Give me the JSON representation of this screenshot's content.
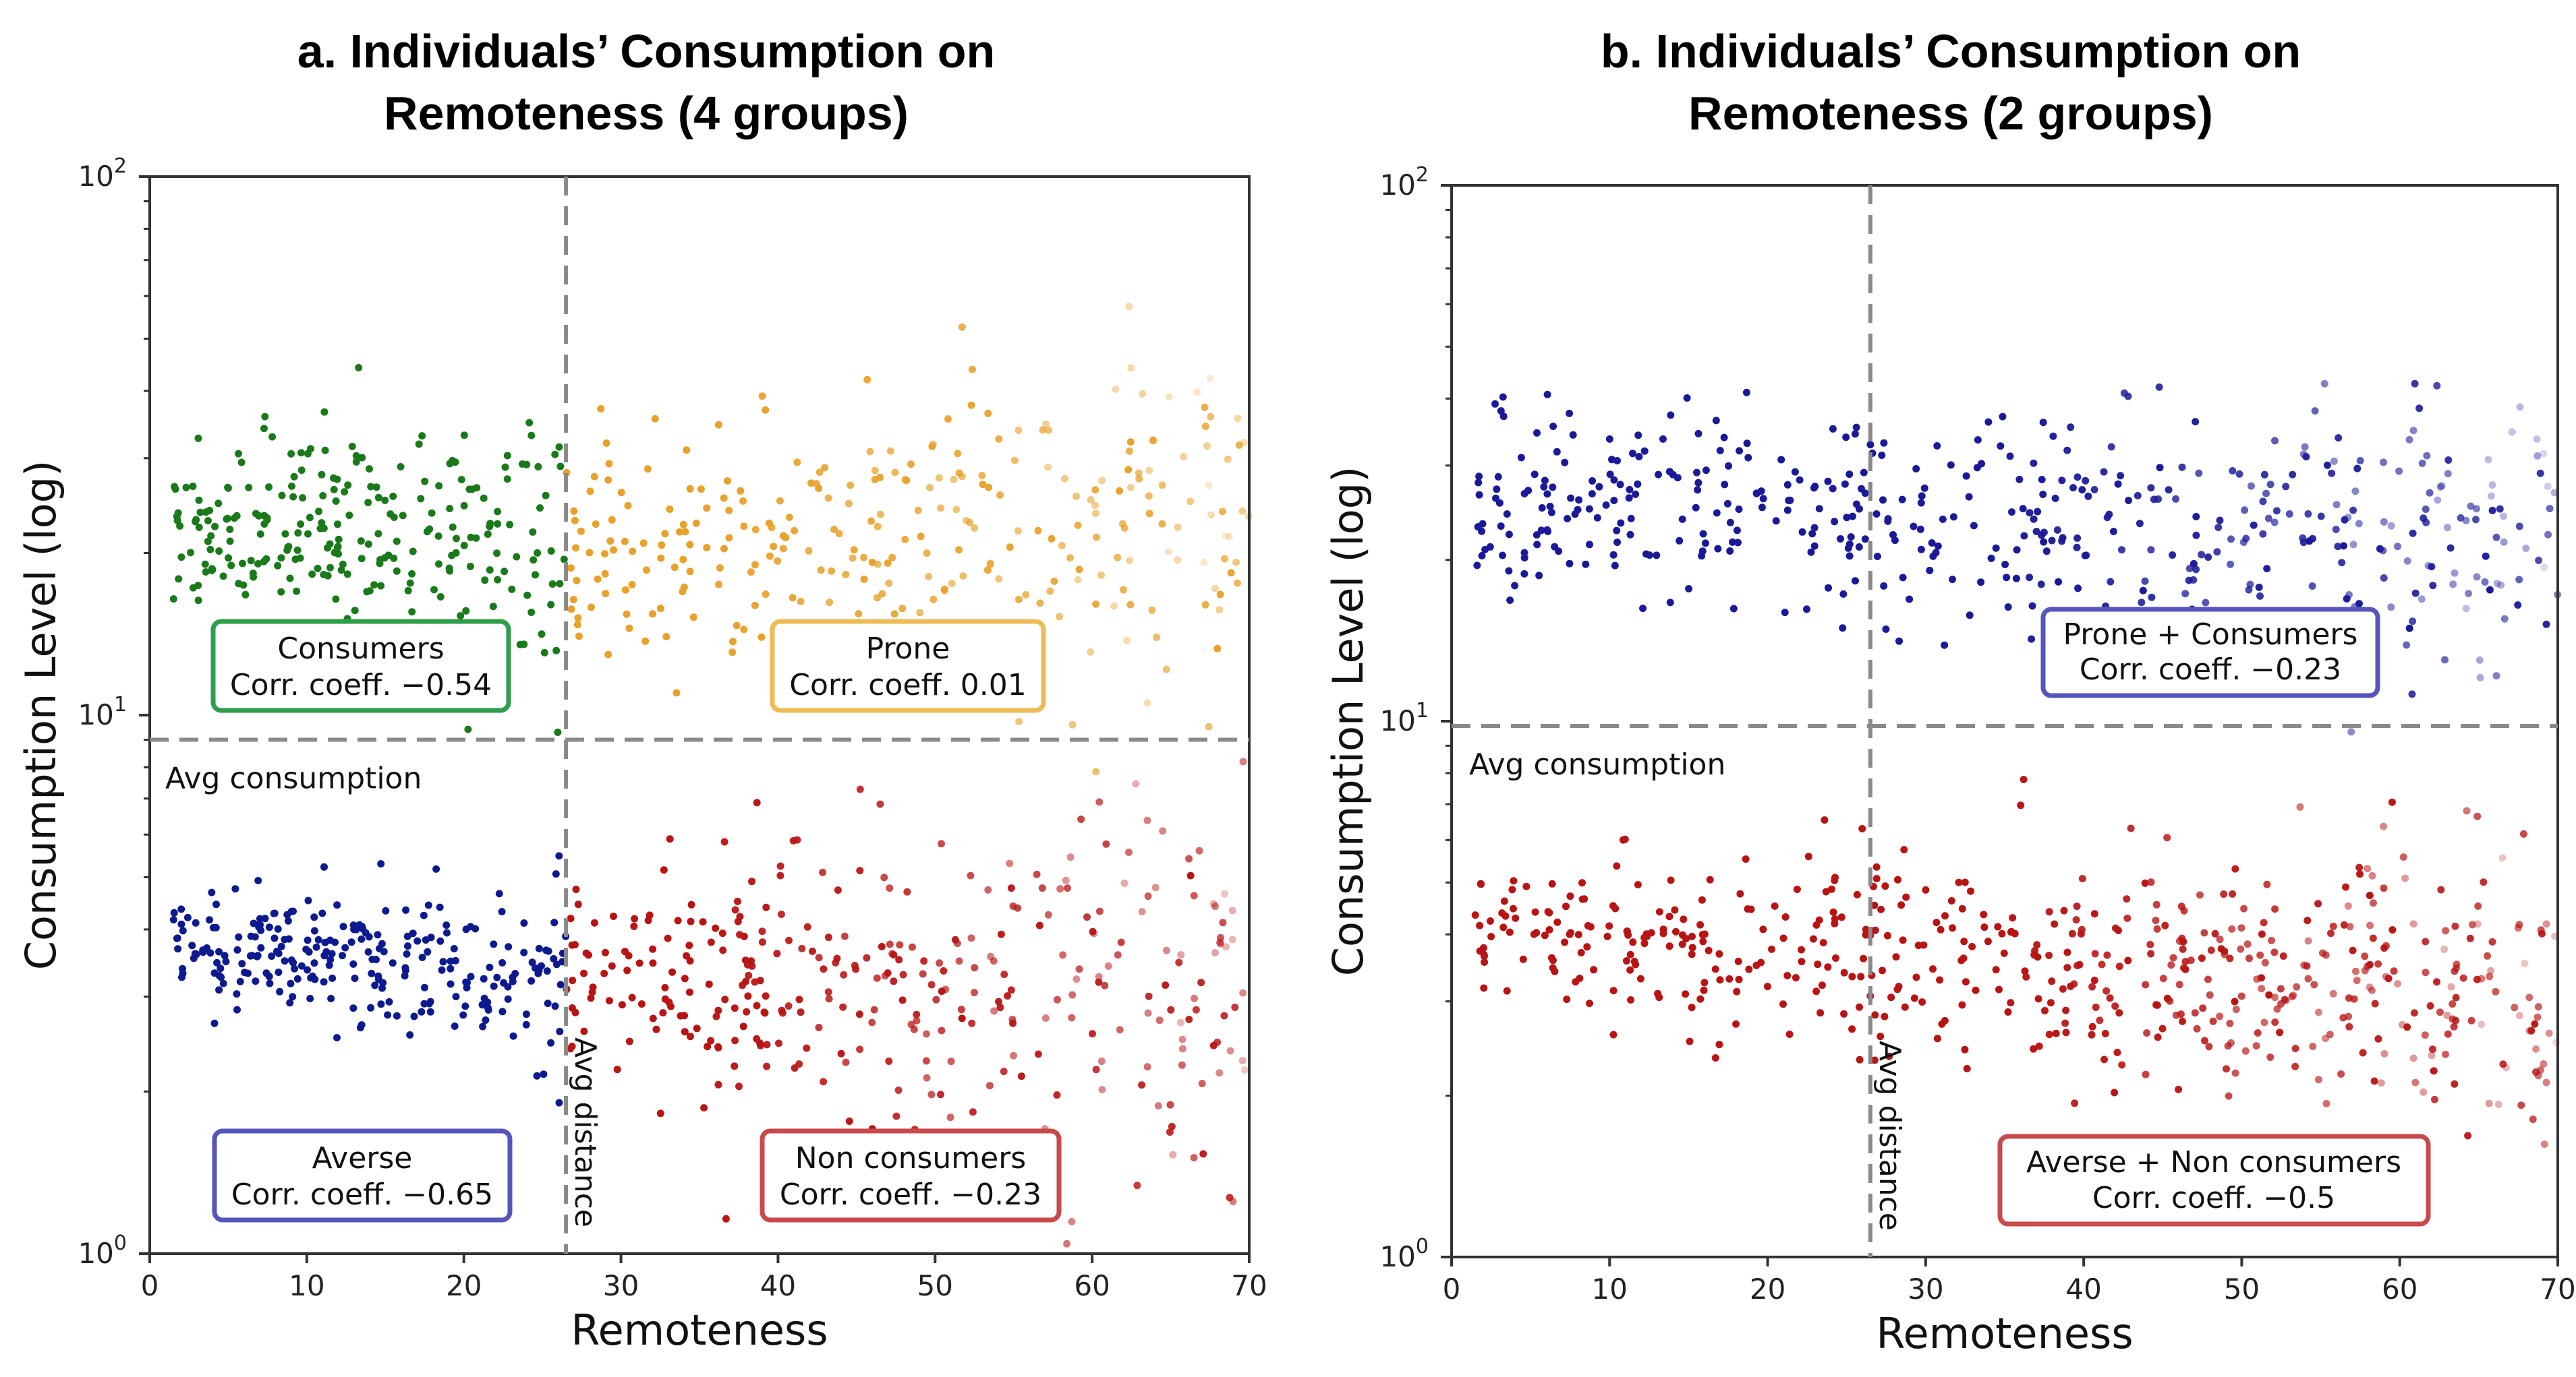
{
  "chart_data": [
    {
      "type": "scatter",
      "panel": "a",
      "title_lines": [
        "a. Individuals’ Consumption on",
        "Remoteness (4 groups)"
      ],
      "xlabel": "Remoteness",
      "ylabel": "Consumption Level (log)",
      "xlim": [
        0,
        70
      ],
      "ylim": [
        1,
        100
      ],
      "yscale": "log",
      "xticks": [
        "0",
        "10",
        "20",
        "30",
        "40",
        "50",
        "60",
        "70"
      ],
      "yticks": [
        {
          "base": "10",
          "exp": "0"
        },
        {
          "base": "10",
          "exp": "1"
        },
        {
          "base": "10",
          "exp": "2"
        }
      ],
      "avg_consumption": 9.0,
      "avg_distance": 26.5,
      "avg_consumption_label": "Avg consumption",
      "avg_distance_label": "Avg distance",
      "series": [
        {
          "name": "Consumers",
          "color": "#1a7a1a",
          "x_range": [
            1.5,
            26.5
          ],
          "y_start": 22.5,
          "y_end": 20.5,
          "spread": 0.07,
          "count": 260,
          "seed": 11
        },
        {
          "name": "Prone",
          "color": "#e8a12a",
          "x_range": [
            26.5,
            70
          ],
          "y_start": 20.5,
          "y_end": 21.5,
          "spread": 0.09,
          "count": 300,
          "seed": 23
        },
        {
          "name": "Averse",
          "color": "#0d1a8f",
          "x_range": [
            1.5,
            26.5
          ],
          "y_start": 3.8,
          "y_end": 3.2,
          "spread": 0.045,
          "count": 260,
          "seed": 37
        },
        {
          "name": "Non consumers",
          "color": "#b81414",
          "x_range": [
            26.5,
            70
          ],
          "y_start": 3.3,
          "y_end": 3.0,
          "spread": 0.1,
          "count": 340,
          "seed": 41
        }
      ],
      "boxes": [
        {
          "label": "Consumers",
          "coeff": "Corr. coeff. −0.54",
          "color": "#2e9e4a"
        },
        {
          "label": "Prone",
          "coeff": "Corr. coeff. 0.01",
          "color": "#eebb55"
        },
        {
          "label": "Averse",
          "coeff": "Corr. coeff. −0.65",
          "color": "#5555bb"
        },
        {
          "label": "Non consumers",
          "coeff": "Corr. coeff. −0.23",
          "color": "#c84a4a"
        }
      ]
    },
    {
      "type": "scatter",
      "panel": "b",
      "title_lines": [
        "b. Individuals’ Consumption on",
        "Remoteness (2 groups)"
      ],
      "xlabel": "Remoteness",
      "ylabel": "Consumption Level (log)",
      "xlim": [
        0,
        70
      ],
      "ylim": [
        1,
        100
      ],
      "yscale": "log",
      "xticks": [
        "0",
        "10",
        "20",
        "30",
        "40",
        "50",
        "60",
        "70"
      ],
      "yticks": [
        {
          "base": "10",
          "exp": "0"
        },
        {
          "base": "10",
          "exp": "1"
        },
        {
          "base": "10",
          "exp": "2"
        }
      ],
      "avg_consumption": 9.8,
      "avg_distance": 26.5,
      "avg_consumption_label": "Avg consumption",
      "avg_distance_label": "Avg distance",
      "series": [
        {
          "name": "Prone + Consumers",
          "color": "#1a1a99",
          "x_range": [
            1.5,
            70
          ],
          "y_start": 25.5,
          "y_end": 22.5,
          "spread": 0.075,
          "count": 480,
          "seed": 53
        },
        {
          "name": "Averse + Non consumers",
          "color": "#b81414",
          "x_range": [
            1.5,
            70
          ],
          "y_start": 4.1,
          "y_end": 3.1,
          "spread": 0.07,
          "count": 560,
          "seed": 67
        }
      ],
      "boxes": [
        {
          "label": "Prone + Consumers",
          "coeff": "Corr. coeff. −0.23",
          "color": "#5555bb"
        },
        {
          "label": "Averse + Non consumers",
          "coeff": "Corr. coeff. −0.5",
          "color": "#c84a4a"
        }
      ]
    }
  ]
}
